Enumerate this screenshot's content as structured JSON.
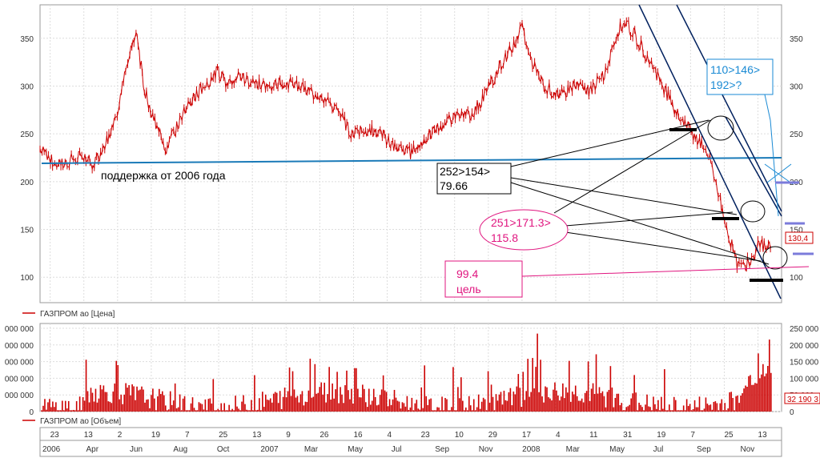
{
  "chart_data": [
    {
      "type": "line",
      "series": [
        {
          "name": "ГАЗПРОМ ао [Цена]"
        }
      ],
      "y_ticks": [
        100,
        150,
        200,
        250,
        300,
        350
      ],
      "price_points": [
        [
          0,
          235
        ],
        [
          0.015,
          222
        ],
        [
          0.03,
          218
        ],
        [
          0.045,
          224
        ],
        [
          0.06,
          226
        ],
        [
          0.07,
          218
        ],
        [
          0.08,
          228
        ],
        [
          0.1,
          260
        ],
        [
          0.12,
          330
        ],
        [
          0.13,
          355
        ],
        [
          0.14,
          300
        ],
        [
          0.15,
          270
        ],
        [
          0.16,
          255
        ],
        [
          0.17,
          235
        ],
        [
          0.18,
          250
        ],
        [
          0.2,
          280
        ],
        [
          0.22,
          300
        ],
        [
          0.24,
          315
        ],
        [
          0.25,
          305
        ],
        [
          0.27,
          310
        ],
        [
          0.3,
          300
        ],
        [
          0.33,
          305
        ],
        [
          0.36,
          295
        ],
        [
          0.38,
          290
        ],
        [
          0.4,
          275
        ],
        [
          0.42,
          250
        ],
        [
          0.44,
          255
        ],
        [
          0.46,
          250
        ],
        [
          0.48,
          235
        ],
        [
          0.5,
          230
        ],
        [
          0.52,
          245
        ],
        [
          0.55,
          265
        ],
        [
          0.58,
          270
        ],
        [
          0.6,
          290
        ],
        [
          0.62,
          320
        ],
        [
          0.64,
          345
        ],
        [
          0.65,
          360
        ],
        [
          0.66,
          330
        ],
        [
          0.68,
          300
        ],
        [
          0.7,
          290
        ],
        [
          0.72,
          300
        ],
        [
          0.74,
          295
        ],
        [
          0.76,
          310
        ],
        [
          0.78,
          360
        ],
        [
          0.79,
          365
        ],
        [
          0.8,
          355
        ],
        [
          0.82,
          330
        ],
        [
          0.84,
          300
        ],
        [
          0.86,
          270
        ],
        [
          0.88,
          250
        ],
        [
          0.9,
          230
        ],
        [
          0.91,
          205
        ],
        [
          0.92,
          170
        ],
        [
          0.93,
          140
        ],
        [
          0.94,
          115
        ],
        [
          0.95,
          110
        ],
        [
          0.96,
          120
        ],
        [
          0.97,
          135
        ],
        [
          0.98,
          130
        ],
        [
          0.985,
          130.4
        ]
      ],
      "annotations": {
        "support": "поддержка от 2006 года",
        "box_black_1": "252>154>",
        "box_black_2": "79.66",
        "ellipse_magenta_1": "251>171.3>",
        "ellipse_magenta_2": "115.8",
        "box_magenta_1": "99.4",
        "box_magenta_2": "цель",
        "box_blue_1": "110>146>",
        "box_blue_2": "192>?",
        "last_price": "130,4"
      },
      "colors": {
        "price": "#cc0000",
        "support": "#1a7ab8",
        "magenta": "#e0157f",
        "blue": "#1a8ad4",
        "marker": "#7b7bdb"
      }
    },
    {
      "type": "bar",
      "series": [
        {
          "name": "ГАЗПРОМ ао [Объем]"
        }
      ],
      "left_ticks": [
        "0",
        "000 000",
        "000 000",
        "000 000",
        "000 000",
        "000 000"
      ],
      "right_ticks": [
        "0",
        "50 000",
        "100 000",
        "150 000",
        "200 000",
        "250 000"
      ],
      "ylim": [
        0,
        250000
      ],
      "last_volume": "32 190 3"
    }
  ],
  "x_axis": {
    "days": [
      "23",
      "13",
      "2",
      "19",
      "7",
      "25",
      "13",
      "9",
      "26",
      "16",
      "4",
      "23",
      "10",
      "29",
      "17",
      "4",
      "11",
      "31",
      "19",
      "7",
      "25",
      "13"
    ],
    "months": [
      "2006",
      "Apr",
      "Jun",
      "Aug",
      "Oct",
      "2007",
      "Mar",
      "May",
      "Jul",
      "Sep",
      "Nov",
      "2008",
      "Mar",
      "May",
      "Jul",
      "Sep",
      "Nov"
    ]
  }
}
